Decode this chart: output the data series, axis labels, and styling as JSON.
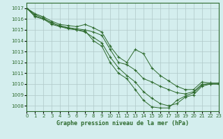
{
  "background_color": "#d4eeee",
  "grid_color": "#b0c8c8",
  "line_color": "#2d6a2d",
  "marker_color": "#2d6a2d",
  "title": "Graphe pression niveau de la mer (hPa)",
  "title_color": "#2d6a2d",
  "xlim": [
    0,
    23
  ],
  "ylim": [
    1007.5,
    1017.5
  ],
  "yticks": [
    1008,
    1009,
    1010,
    1011,
    1012,
    1013,
    1014,
    1015,
    1016,
    1017
  ],
  "xticks": [
    0,
    1,
    2,
    3,
    4,
    5,
    6,
    7,
    8,
    9,
    10,
    11,
    12,
    13,
    14,
    15,
    16,
    17,
    18,
    19,
    20,
    21,
    22,
    23
  ],
  "series": [
    [
      1017.0,
      1016.2,
      1016.0,
      1015.7,
      1015.3,
      1015.2,
      1015.1,
      1015.0,
      1014.8,
      1014.5,
      1013.2,
      1012.0,
      1011.8,
      1011.3,
      1010.5,
      1010.2,
      1009.8,
      1009.5,
      1009.2,
      1009.1,
      1009.3,
      1010.0,
      1010.0,
      1010.0
    ],
    [
      1017.0,
      1016.5,
      1016.2,
      1015.8,
      1015.5,
      1015.4,
      1015.3,
      1015.5,
      1015.2,
      1014.8,
      1013.5,
      1012.5,
      1012.0,
      1013.2,
      1012.8,
      1011.5,
      1010.8,
      1010.3,
      1009.8,
      1009.5,
      1009.5,
      1010.2,
      1010.1,
      1010.1
    ],
    [
      1017.0,
      1016.3,
      1016.0,
      1015.5,
      1015.3,
      1015.1,
      1015.0,
      1014.8,
      1014.3,
      1013.8,
      1012.5,
      1011.5,
      1010.8,
      1010.2,
      1009.3,
      1008.7,
      1008.2,
      1008.0,
      1008.2,
      1008.8,
      1009.0,
      1009.8,
      1010.0,
      1010.0
    ],
    [
      1017.0,
      1016.4,
      1016.1,
      1015.6,
      1015.4,
      1015.2,
      1015.0,
      1014.9,
      1014.0,
      1013.5,
      1012.0,
      1011.0,
      1010.5,
      1009.5,
      1008.5,
      1007.9,
      1007.8,
      1007.8,
      1008.5,
      1008.9,
      1009.2,
      1009.9,
      1010.1,
      1010.1
    ]
  ]
}
